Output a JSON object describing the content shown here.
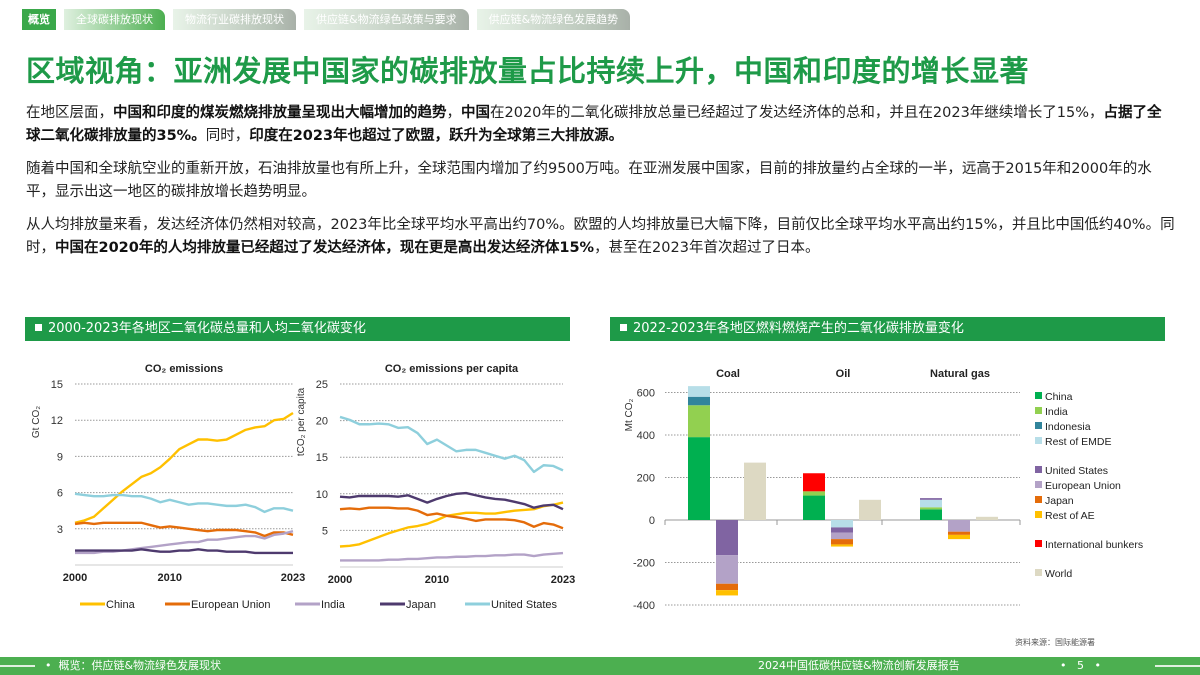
{
  "tabs": [
    "概览",
    "全球碳排放现状",
    "物流行业碳排放现状",
    "供应链&物流绿色政策与要求",
    "供应链&物流绿色发展趋势"
  ],
  "title": "区域视角：亚洲发展中国家的碳排放量占比持续上升，中国和印度的增长显著",
  "paragraphs": [
    [
      {
        "t": "在地区层面，"
      },
      {
        "t": "中国和印度的煤炭燃烧排放量呈现出大幅增加的趋势",
        "b": true
      },
      {
        "t": "，"
      },
      {
        "t": "中国",
        "b": true
      },
      {
        "t": "在2020年的二氧化碳排放总量已经超过了发达经济体的总和，并且在2023年继续增长了15%，"
      },
      {
        "t": "占据了全球二氧化碳排放量的35%。",
        "b": true
      },
      {
        "t": "同时，"
      },
      {
        "t": "印度在2023年也超过了欧盟，跃升为全球第三大排放源。",
        "b": true
      }
    ],
    [
      {
        "t": "随着中国和全球航空业的重新开放，石油排放量也有所上升，全球范围内增加了约9500万吨。在亚洲发展中国家，目前的排放量约占全球的一半，远高于2015年和2000年的水平，显示出这一地区的碳排放增长趋势明显。"
      }
    ],
    [
      {
        "t": "从人均排放量来看，发达经济体仍然相对较高，2023年比全球平均水平高出约70%。欧盟的人均排放量已大幅下降，目前仅比全球平均水平高出约15%，并且比中国低约40%。同时，"
      },
      {
        "t": "中国在2020年的人均排放量已经超过了发达经济体，现在更是高出发达经济体15%",
        "b": true
      },
      {
        "t": "，甚至在2023年首次超过了日本。"
      }
    ]
  ],
  "section_left": "2000-2023年各地区二氧化碳总量和人均二氧化碳变化",
  "section_right": "2022-2023年各地区燃料燃烧产生的二氧化碳排放量变化",
  "source": "资料来源：国际能源署",
  "footer": {
    "left": "概览：供应链&物流绿色发展现状",
    "right": "2024中国低碳供应链&物流创新发展报告",
    "page": "5"
  },
  "chart_data": [
    {
      "type": "line",
      "title": "CO₂ emissions",
      "ylabel": "Gt CO₂",
      "ylim": [
        0,
        15
      ],
      "yticks": [
        3,
        6,
        9,
        12,
        15
      ],
      "xlim": [
        2000,
        2023
      ],
      "xticks": [
        2000,
        2010,
        2023
      ],
      "grid": true,
      "legend": "bottom",
      "series": [
        {
          "name": "China",
          "color": "#ffc000",
          "values": [
            3.5,
            3.7,
            4.0,
            4.7,
            5.4,
            6.1,
            6.7,
            7.3,
            7.6,
            8.1,
            8.8,
            9.6,
            10.0,
            10.4,
            10.4,
            10.3,
            10.4,
            10.8,
            11.2,
            11.4,
            11.5,
            12.0,
            12.1,
            12.6
          ]
        },
        {
          "name": "European Union",
          "color": "#e46c0a",
          "values": [
            3.4,
            3.5,
            3.4,
            3.5,
            3.5,
            3.5,
            3.5,
            3.5,
            3.3,
            3.1,
            3.2,
            3.1,
            3.0,
            2.9,
            2.8,
            2.9,
            2.9,
            2.9,
            2.8,
            2.7,
            2.4,
            2.7,
            2.7,
            2.5
          ]
        },
        {
          "name": "India",
          "color": "#b3a2c7",
          "values": [
            1.0,
            1.0,
            1.0,
            1.1,
            1.1,
            1.2,
            1.3,
            1.4,
            1.5,
            1.6,
            1.7,
            1.8,
            1.9,
            1.9,
            2.1,
            2.1,
            2.2,
            2.3,
            2.4,
            2.4,
            2.2,
            2.5,
            2.6,
            2.8
          ]
        },
        {
          "name": "Japan",
          "color": "#4e3a6e",
          "values": [
            1.2,
            1.2,
            1.2,
            1.2,
            1.2,
            1.2,
            1.2,
            1.3,
            1.2,
            1.1,
            1.1,
            1.2,
            1.2,
            1.3,
            1.2,
            1.2,
            1.1,
            1.1,
            1.1,
            1.0,
            1.0,
            1.0,
            1.0,
            1.0
          ]
        },
        {
          "name": "United States",
          "color": "#8ecfdc",
          "values": [
            5.9,
            5.8,
            5.7,
            5.7,
            5.8,
            5.8,
            5.7,
            5.7,
            5.5,
            5.2,
            5.4,
            5.2,
            5.0,
            5.1,
            5.1,
            5.0,
            4.9,
            4.9,
            5.0,
            4.8,
            4.4,
            4.7,
            4.7,
            4.5
          ]
        }
      ]
    },
    {
      "type": "line",
      "title": "CO₂ emissions per capita",
      "ylabel": "tCO₂ per capita",
      "ylim": [
        0,
        25
      ],
      "yticks": [
        5,
        10,
        15,
        20,
        25
      ],
      "xlim": [
        2000,
        2023
      ],
      "xticks": [
        2000,
        2010,
        2023
      ],
      "grid": true,
      "series": [
        {
          "name": "China",
          "color": "#ffc000",
          "values": [
            2.8,
            2.9,
            3.1,
            3.6,
            4.1,
            4.6,
            5.0,
            5.4,
            5.6,
            5.9,
            6.4,
            7.0,
            7.2,
            7.4,
            7.4,
            7.3,
            7.3,
            7.5,
            7.7,
            7.8,
            7.9,
            8.3,
            8.5,
            8.8
          ]
        },
        {
          "name": "European Union",
          "color": "#e46c0a",
          "values": [
            7.9,
            8.0,
            7.9,
            8.1,
            8.1,
            8.1,
            8.0,
            8.0,
            7.7,
            7.1,
            7.3,
            7.0,
            6.8,
            6.6,
            6.3,
            6.5,
            6.5,
            6.5,
            6.4,
            6.1,
            5.5,
            6.0,
            5.8,
            5.3
          ]
        },
        {
          "name": "India",
          "color": "#b3a2c7",
          "values": [
            0.9,
            0.9,
            0.9,
            0.9,
            0.9,
            1.0,
            1.0,
            1.1,
            1.1,
            1.2,
            1.3,
            1.3,
            1.4,
            1.4,
            1.5,
            1.5,
            1.6,
            1.6,
            1.7,
            1.7,
            1.5,
            1.7,
            1.8,
            1.9
          ]
        },
        {
          "name": "Japan",
          "color": "#4e3a6e",
          "values": [
            9.6,
            9.5,
            9.7,
            9.7,
            9.7,
            9.7,
            9.6,
            9.8,
            9.3,
            8.8,
            9.3,
            9.7,
            10.0,
            10.1,
            9.8,
            9.5,
            9.3,
            9.2,
            8.9,
            8.6,
            8.1,
            8.4,
            8.5,
            7.9
          ]
        },
        {
          "name": "United States",
          "color": "#8ecfdc",
          "values": [
            20.5,
            20.1,
            19.5,
            19.5,
            19.6,
            19.5,
            19.0,
            19.1,
            18.3,
            16.8,
            17.4,
            16.6,
            15.8,
            16.0,
            16.0,
            15.6,
            15.2,
            14.8,
            15.2,
            14.6,
            13.0,
            13.9,
            13.8,
            13.2
          ]
        }
      ]
    },
    {
      "type": "bar",
      "stacked": true,
      "ylabel": "Mt CO₂",
      "ylim": [
        -400,
        600
      ],
      "yticks": [
        -400,
        -200,
        0,
        200,
        400,
        600
      ],
      "grid": true,
      "legend": "right",
      "categories": [
        "Coal",
        "Oil",
        "Natural gas"
      ],
      "legend_items": [
        {
          "name": "China",
          "color": "#00b050"
        },
        {
          "name": "India",
          "color": "#92d050"
        },
        {
          "name": "Indonesia",
          "color": "#31849b"
        },
        {
          "name": "Rest of EMDE",
          "color": "#b7dee8"
        },
        {
          "name": "United States",
          "color": "#8064a2"
        },
        {
          "name": "European Union",
          "color": "#b3a2c7"
        },
        {
          "name": "Japan",
          "color": "#e46c0a"
        },
        {
          "name": "Rest of AE",
          "color": "#ffc000"
        },
        {
          "name": "International bunkers",
          "color": "#ff0000"
        },
        {
          "name": "World",
          "color": "#ddd9c3"
        }
      ],
      "groups": [
        {
          "category": "Coal",
          "emde": {
            "China": 390,
            "India": 150,
            "Indonesia": 40,
            "Rest of EMDE": 50
          },
          "ae": {
            "United States": -165,
            "European Union": -135,
            "Japan": -30,
            "Rest of AE": -25
          },
          "world": 270
        },
        {
          "category": "Oil",
          "emde": {
            "China": 115,
            "India": 20,
            "International bunkers": 85
          },
          "ae": {
            "Rest of EMDE": -35,
            "United States": -25,
            "European Union": -30,
            "Japan": -25,
            "Rest of AE": -10
          },
          "world": 95
        },
        {
          "category": "Natural gas",
          "emde": {
            "China": 50,
            "India": 10,
            "Rest of EMDE": 35,
            "United States": 8
          },
          "ae": {
            "European Union": -55,
            "Japan": -15,
            "Rest of AE": -20
          },
          "world": 15
        }
      ]
    }
  ]
}
